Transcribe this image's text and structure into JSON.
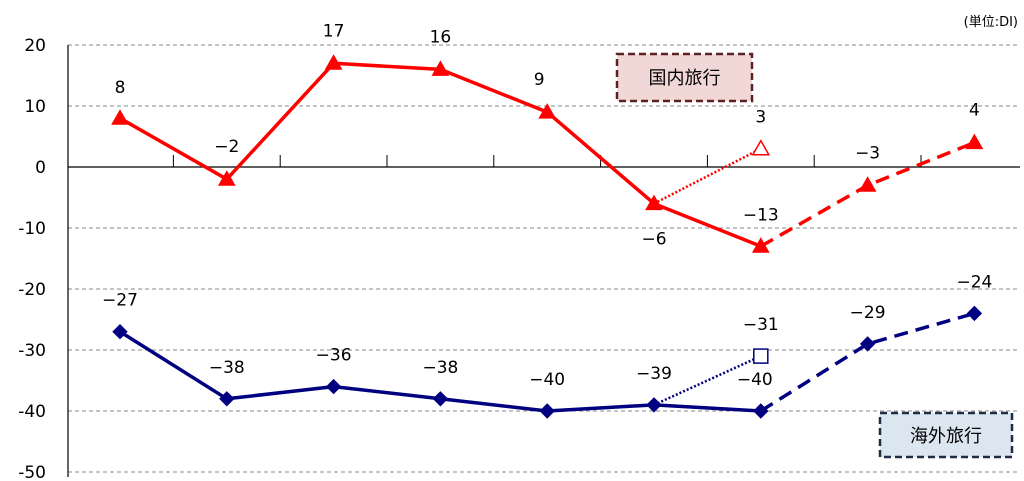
{
  "unit_label": "(単位:DI)",
  "colors": {
    "domestic": "#ff0000",
    "overseas": "#000080",
    "domestic_box_fill": "#f2d7d7",
    "domestic_box_border": "#5a2222",
    "overseas_box_fill": "#dce6f1",
    "overseas_box_border": "#1f2d44",
    "grid": "#888888"
  },
  "chart_data": {
    "type": "line",
    "ylim": [
      -50,
      20
    ],
    "yticks": [
      20,
      10,
      0,
      -10,
      -20,
      -30,
      -40,
      -50
    ],
    "ytick_labels": [
      "20",
      "10",
      "0",
      "-10",
      "-20",
      "-30",
      "-40",
      "-50"
    ],
    "grid": "horizontal-dashed",
    "x_count": 9,
    "series": [
      {
        "name": "国内旅行",
        "marker": "triangle",
        "values": [
          8,
          -2,
          17,
          16,
          9,
          -6,
          -13,
          -3,
          4
        ],
        "labels": [
          "8",
          "−2",
          "17",
          "16",
          "9",
          "−6",
          "−13",
          "−3",
          "4"
        ],
        "solid_until_index": 6,
        "alt_point": {
          "x_index": 6,
          "value": 3,
          "label": "3",
          "from_index": 5
        }
      },
      {
        "name": "海外旅行",
        "marker": "diamond",
        "values": [
          -27,
          -38,
          -36,
          -38,
          -40,
          -39,
          -40,
          -29,
          -24
        ],
        "labels": [
          "−27",
          "−38",
          "−36",
          "−38",
          "−40",
          "−39",
          "−40",
          "−29",
          "−24"
        ],
        "solid_until_index": 6,
        "alt_point": {
          "x_index": 6,
          "value": -31,
          "label": "−31",
          "from_index": 5
        }
      }
    ]
  }
}
